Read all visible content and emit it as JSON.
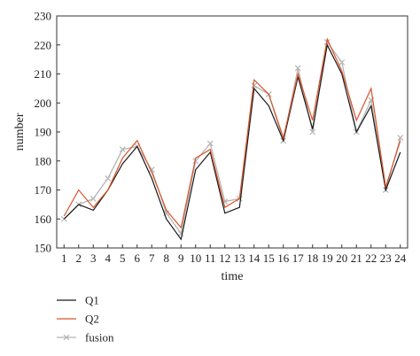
{
  "chart_data": {
    "type": "line",
    "title": "",
    "xlabel": "time",
    "ylabel": "number",
    "x": [
      1,
      2,
      3,
      4,
      5,
      6,
      7,
      8,
      9,
      10,
      11,
      12,
      13,
      14,
      15,
      16,
      17,
      18,
      19,
      20,
      21,
      22,
      23,
      24
    ],
    "ylim": [
      150,
      230
    ],
    "yticks": [
      150,
      160,
      170,
      180,
      190,
      200,
      210,
      220,
      230
    ],
    "grid": false,
    "legend_position": "bottom-left",
    "series": [
      {
        "name": "Q1",
        "color": "#1a1a1a",
        "marker": "none",
        "values": [
          160,
          165,
          163,
          170,
          179,
          185,
          174,
          160,
          153,
          177,
          183,
          162,
          164,
          205,
          199,
          187,
          209,
          191,
          220,
          210,
          190,
          199,
          170,
          183
        ]
      },
      {
        "name": "Q2",
        "color": "#d9542b",
        "marker": "none",
        "values": [
          161,
          170,
          164,
          170,
          181,
          187,
          176,
          163,
          157,
          181,
          184,
          164,
          167,
          208,
          203,
          188,
          210,
          194,
          222,
          211,
          194,
          205,
          171,
          187
        ]
      },
      {
        "name": "fusion",
        "color": "#b5b5b5",
        "marker": "x",
        "values": [
          160,
          165,
          167,
          174,
          184,
          185,
          177,
          162,
          155,
          180,
          186,
          166,
          167,
          206,
          203,
          187,
          212,
          190,
          221,
          214,
          190,
          201,
          170,
          188
        ]
      }
    ]
  }
}
